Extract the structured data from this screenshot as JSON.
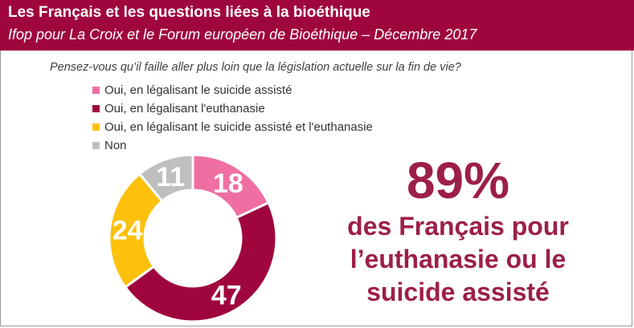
{
  "header": {
    "title": "Les Français et les questions liées à la bioéthique",
    "subtitle": "Ifop pour La Croix et le Forum européen de Bioéthique – Décembre 2017"
  },
  "question": "Pensez-vous qu’il faille aller plus loin que la législation actuelle sur la fin de vie?",
  "chart_data": {
    "type": "pie",
    "title": "",
    "categories": [
      "Oui, en légalisant le suicide assisté",
      "Oui, en légalisant l'euthanasie",
      "Oui, en légalisant le suicide assisté et l'euthanasie",
      "Non"
    ],
    "values": [
      18,
      47,
      24,
      11
    ],
    "colors": [
      "#ef6fa3",
      "#a0063e",
      "#fdc10c",
      "#bfbfbf"
    ],
    "donut": true,
    "legend_position": "top-left",
    "data_labels": true
  },
  "highlight": {
    "value": "89%",
    "lines": [
      "des Français pour",
      "l’euthanasie ou le",
      "suicide assisté"
    ]
  }
}
